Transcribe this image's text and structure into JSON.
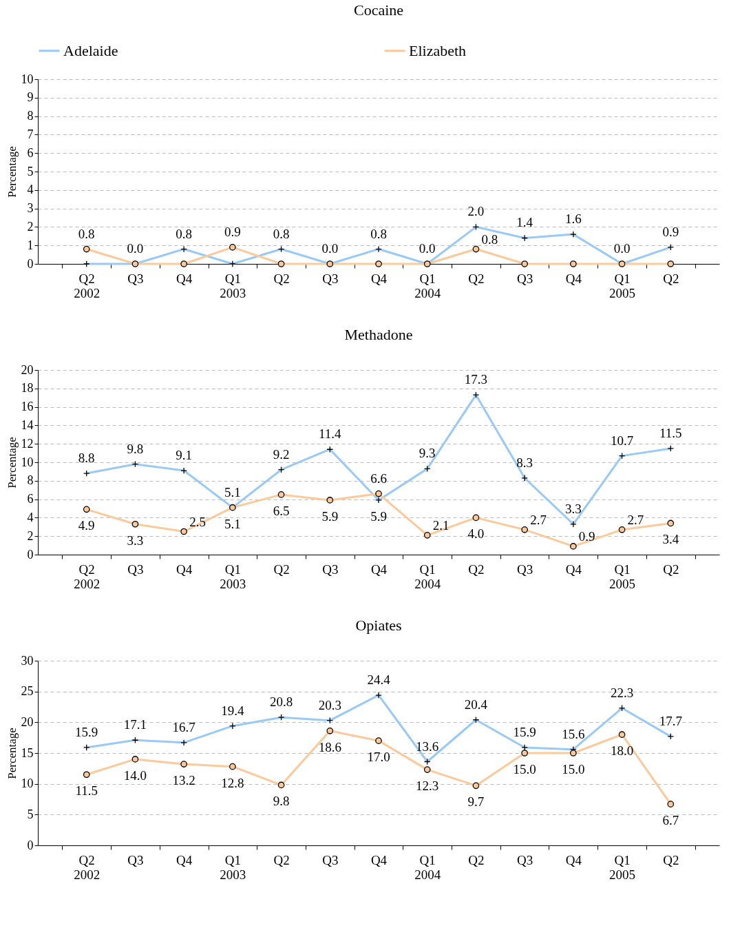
{
  "chart_data": [
    {
      "type": "line",
      "title": "Cocaine",
      "ylabel": "Percentage",
      "categories": [
        "Q2\n2002",
        "Q3",
        "Q4",
        "Q1\n2003",
        "Q2",
        "Q3",
        "Q4",
        "Q1\n2004",
        "Q2",
        "Q3",
        "Q4",
        "Q1\n2005",
        "Q2"
      ],
      "ylim": [
        0,
        10
      ],
      "yticks": [
        0,
        1,
        2,
        3,
        4,
        5,
        6,
        7,
        8,
        9,
        10
      ],
      "grid": "y",
      "legend": "top",
      "series": [
        {
          "name": "Adelaide",
          "color": "#99c9f5",
          "marker": "cross",
          "values": [
            0,
            0,
            0.8,
            0,
            0.8,
            0,
            0.8,
            0,
            2.0,
            1.4,
            1.6,
            0,
            0.9
          ],
          "value_labels": [
            null,
            "0.0",
            "0.8",
            null,
            "0.8",
            "0.0",
            "0.8",
            "0.0",
            "2.0",
            "1.4",
            "1.6",
            "0.0",
            "0.9"
          ]
        },
        {
          "name": "Elizabeth",
          "color": "#fbc99a",
          "marker": "circle",
          "values": [
            0.8,
            0,
            0,
            0.9,
            0,
            0,
            0,
            0,
            0.8,
            0,
            0,
            0,
            0
          ],
          "value_labels": [
            "0.8",
            null,
            null,
            "0.9",
            null,
            null,
            null,
            null,
            "0.8",
            null,
            null,
            null,
            null
          ]
        }
      ]
    },
    {
      "type": "line",
      "title": "Methadone",
      "ylabel": "Percentage",
      "categories": [
        "Q2\n2002",
        "Q3",
        "Q4",
        "Q1\n2003",
        "Q2",
        "Q3",
        "Q4",
        "Q1\n2004",
        "Q2",
        "Q3",
        "Q4",
        "Q1\n2005",
        "Q2"
      ],
      "ylim": [
        0,
        20
      ],
      "yticks": [
        0,
        2,
        4,
        6,
        8,
        10,
        12,
        14,
        16,
        18,
        20
      ],
      "grid": "y",
      "series": [
        {
          "name": "Adelaide",
          "color": "#99c9f5",
          "marker": "cross",
          "values": [
            8.8,
            9.8,
            9.1,
            5.1,
            9.2,
            11.4,
            5.9,
            9.3,
            17.3,
            8.3,
            3.3,
            10.7,
            11.5
          ],
          "value_labels": [
            "8.8",
            "9.8",
            "9.1",
            "5.1",
            "9.2",
            "11.4",
            "5.9",
            "9.3",
            "17.3",
            "8.3",
            "3.3",
            "10.7",
            "11.5"
          ]
        },
        {
          "name": "Elizabeth",
          "color": "#fbc99a",
          "marker": "circle",
          "values": [
            4.9,
            3.3,
            2.5,
            5.1,
            6.5,
            5.9,
            6.6,
            2.1,
            4.0,
            2.7,
            0.9,
            2.7,
            3.4
          ],
          "value_labels": [
            "4.9",
            "3.3",
            "2.5",
            "5.1",
            "6.5",
            "5.9",
            "6.6",
            "2.1",
            "4.0",
            "2.7",
            "0.9",
            "2.7",
            "3.4"
          ]
        }
      ]
    },
    {
      "type": "line",
      "title": "Opiates",
      "ylabel": "Percentage",
      "categories": [
        "Q2\n2002",
        "Q3",
        "Q4",
        "Q1\n2003",
        "Q2",
        "Q3",
        "Q4",
        "Q1\n2004",
        "Q2",
        "Q3",
        "Q4",
        "Q1\n2005",
        "Q2"
      ],
      "ylim": [
        0,
        30
      ],
      "yticks": [
        0,
        5,
        10,
        15,
        20,
        25,
        30
      ],
      "grid": "y",
      "series": [
        {
          "name": "Adelaide",
          "color": "#99c9f5",
          "marker": "cross",
          "values": [
            15.9,
            17.1,
            16.7,
            19.4,
            20.8,
            20.3,
            24.4,
            13.6,
            20.4,
            15.9,
            15.6,
            22.3,
            17.7
          ],
          "value_labels": [
            "15.9",
            "17.1",
            "16.7",
            "19.4",
            "20.8",
            "20.3",
            "24.4",
            "13.6",
            "20.4",
            "15.9",
            "15.6",
            "22.3",
            "17.7"
          ]
        },
        {
          "name": "Elizabeth",
          "color": "#fbc99a",
          "marker": "circle",
          "values": [
            11.5,
            14.0,
            13.2,
            12.8,
            9.8,
            18.6,
            17.0,
            12.3,
            9.7,
            15.0,
            15.0,
            18.0,
            6.7
          ],
          "value_labels": [
            "11.5",
            "14.0",
            "13.2",
            "12.8",
            "9.8",
            "18.6",
            "17.0",
            "12.3",
            "9.7",
            "15.0",
            "15.0",
            "18.0",
            "6.7"
          ]
        }
      ]
    }
  ]
}
